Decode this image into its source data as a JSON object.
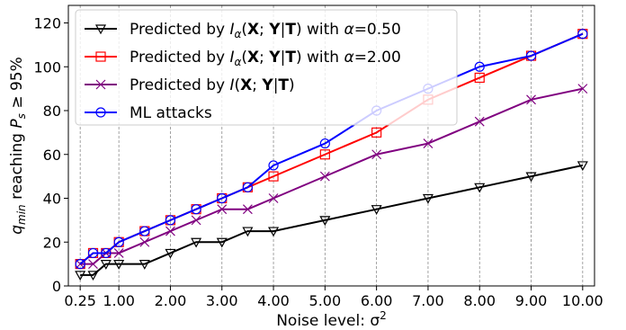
{
  "chart_data": {
    "type": "line",
    "title": "",
    "xlabel": "Noise level: σ²",
    "ylabel": "q_min reaching P_s ≥ 95%",
    "xlim": [
      0.02,
      10.23
    ],
    "ylim": [
      0,
      128
    ],
    "x_ticks": [
      0.25,
      1.0,
      2.0,
      3.0,
      4.0,
      5.0,
      6.0,
      7.0,
      8.0,
      9.0,
      10.0
    ],
    "x_tick_labels": [
      "0.25",
      "1.00",
      "2.00",
      "3.00",
      "4.00",
      "5.00",
      "6.00",
      "7.00",
      "8.00",
      "9.00",
      "10.00"
    ],
    "y_ticks": [
      0,
      20,
      40,
      60,
      80,
      100,
      120
    ],
    "y_tick_labels": [
      "0",
      "20",
      "40",
      "60",
      "80",
      "100",
      "120"
    ],
    "grid": "vertical dashed lines at x ticks",
    "legend_position": "top-left",
    "x": [
      0.25,
      0.5,
      0.75,
      1.0,
      1.5,
      2.0,
      2.5,
      3.0,
      3.5,
      4.0,
      5.0,
      6.0,
      7.0,
      8.0,
      9.0,
      10.0
    ],
    "series": [
      {
        "name": "Predicted by I_α(X;Y|T) with α=0.50",
        "label": {
          "pre": "Predicted by ",
          "italic": "I",
          "sub": "α",
          "mid": "(",
          "b1": "X",
          "mid2": "; ",
          "b2": "Y",
          "mid3": "|",
          "b3": "T",
          "post": ") with ",
          "alpha_sym": "α",
          "post2": "=0.50"
        },
        "color": "#000000",
        "marker": "triangle-down",
        "values": [
          5,
          5,
          10,
          10,
          10,
          15,
          20,
          20,
          25,
          25,
          30,
          35,
          40,
          45,
          50,
          55
        ]
      },
      {
        "name": "Predicted by I_α(X;Y|T) with α=2.00",
        "label": {
          "pre": "Predicted by ",
          "italic": "I",
          "sub": "α",
          "mid": "(",
          "b1": "X",
          "mid2": "; ",
          "b2": "Y",
          "mid3": "|",
          "b3": "T",
          "post": ") with ",
          "alpha_sym": "α",
          "post2": "=2.00"
        },
        "color": "#ff0000",
        "marker": "square",
        "values": [
          10,
          15,
          15,
          20,
          25,
          30,
          35,
          40,
          45,
          50,
          60,
          70,
          85,
          95,
          105,
          115
        ]
      },
      {
        "name": "Predicted by I(X;Y|T)",
        "label": {
          "pre": "Predicted by ",
          "italic": "I",
          "sub": "",
          "mid": "(",
          "b1": "X",
          "mid2": "; ",
          "b2": "Y",
          "mid3": "|",
          "b3": "T",
          "post": ")",
          "alpha_sym": "",
          "post2": ""
        },
        "color": "#800080",
        "marker": "x",
        "values": [
          10,
          10,
          15,
          15,
          20,
          25,
          30,
          35,
          35,
          40,
          50,
          60,
          65,
          75,
          85,
          90
        ]
      },
      {
        "name": "ML attacks",
        "label": {
          "pre": "ML attacks",
          "italic": "",
          "sub": "",
          "mid": "",
          "b1": "",
          "mid2": "",
          "b2": "",
          "mid3": "",
          "b3": "",
          "post": "",
          "alpha_sym": "",
          "post2": ""
        },
        "color": "#0000ff",
        "marker": "circle",
        "values": [
          10,
          15,
          15,
          20,
          25,
          30,
          35,
          40,
          45,
          55,
          65,
          80,
          90,
          100,
          105,
          115
        ]
      }
    ]
  }
}
